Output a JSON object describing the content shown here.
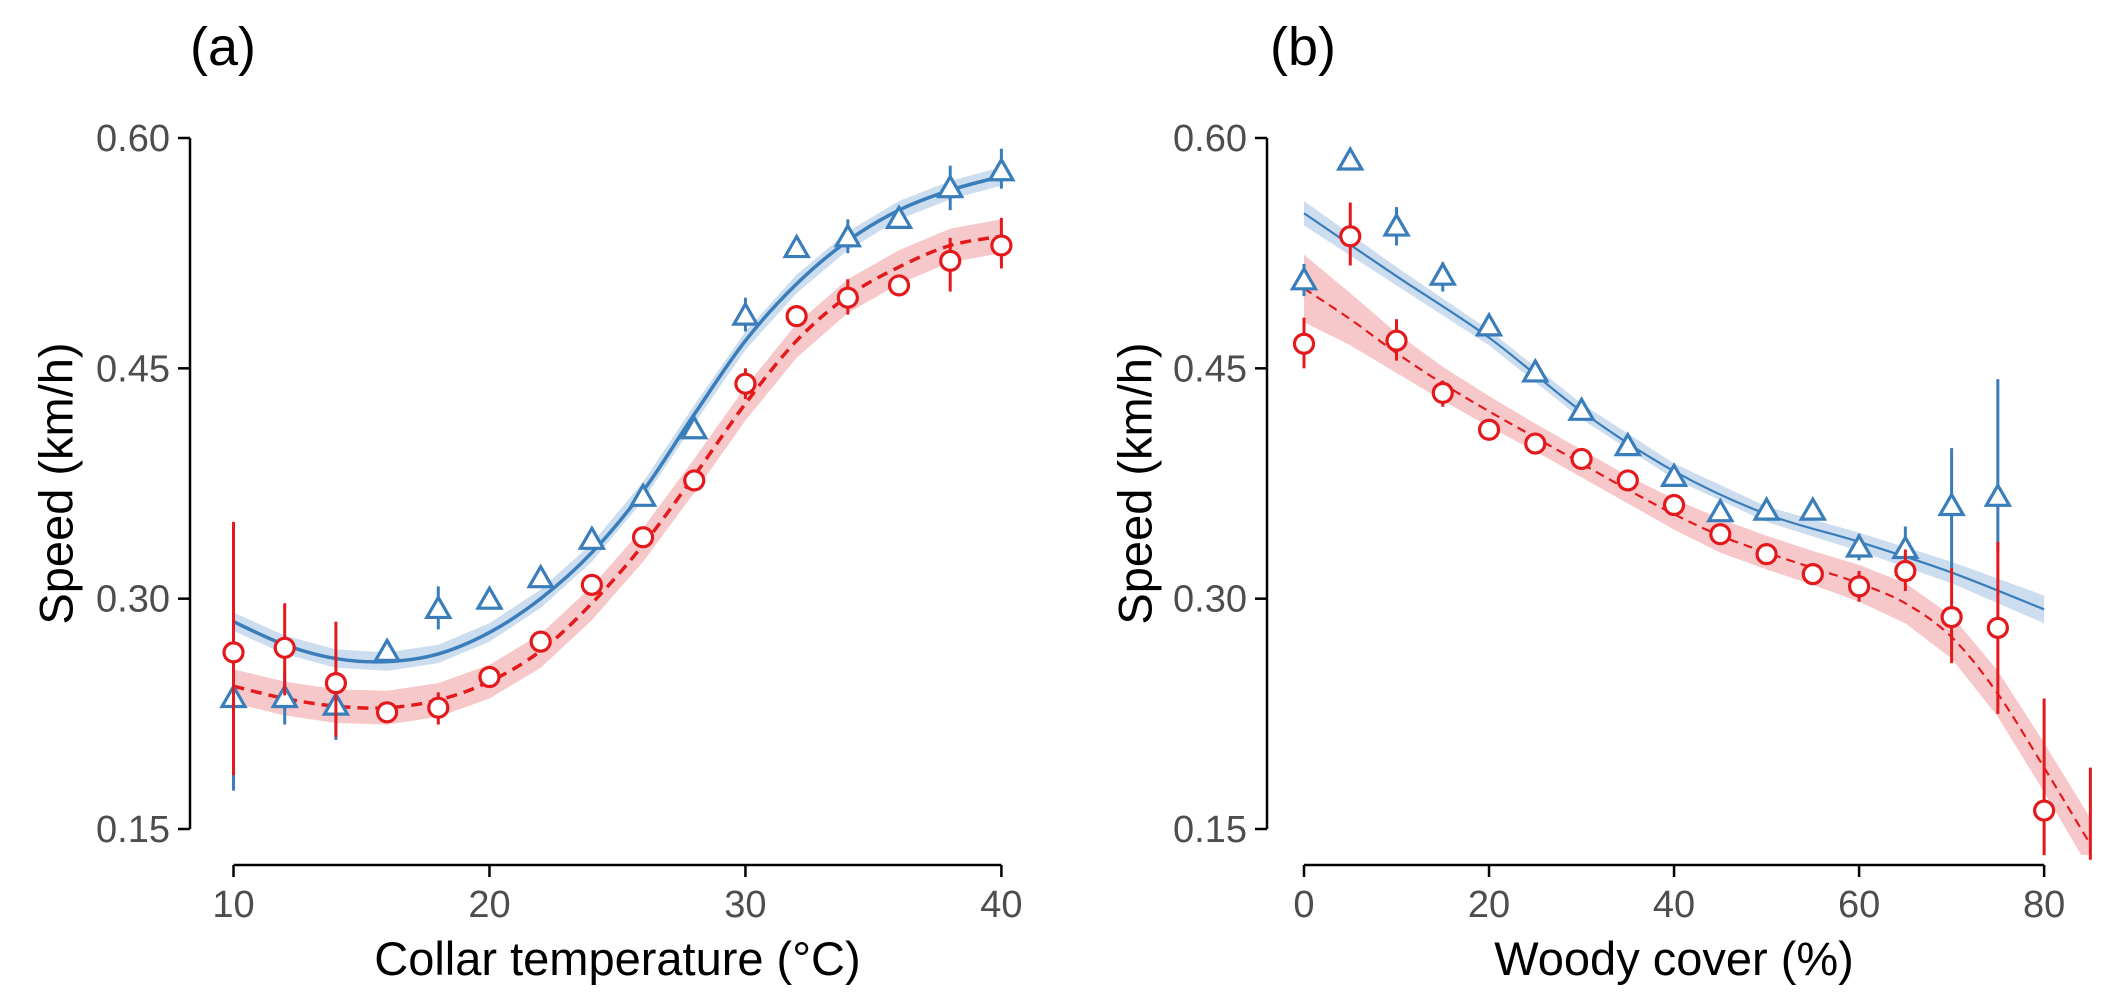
{
  "colors": {
    "blue": "#3a7dbb",
    "red": "#e3191c",
    "blue_band": "#b9d1e8",
    "red_band": "#f4b6b7"
  },
  "chart_data": [
    {
      "type": "scatter",
      "panel_label": "(a)",
      "xlabel": "Collar temperature (°C)",
      "ylabel": "Speed (km/h)",
      "xlim": [
        8.3,
        41
      ],
      "ylim": [
        0.127,
        0.63
      ],
      "xticks": [
        10,
        20,
        30,
        40
      ],
      "xtick_labels": [
        "10",
        "20",
        "30",
        "40"
      ],
      "yticks": [
        0.15,
        0.3,
        0.45,
        0.6
      ],
      "ytick_labels": [
        "0.15",
        "0.30",
        "0.45",
        "0.60"
      ],
      "grid": false,
      "series": [
        {
          "marker": "triangle",
          "color": "#3a7dbb",
          "line": "solid",
          "points": [
            {
              "x": 10,
              "y": 0.235,
              "lo": 0.175,
              "hi": 0.29
            },
            {
              "x": 12,
              "y": 0.235,
              "lo": 0.218,
              "hi": 0.253
            },
            {
              "x": 14,
              "y": 0.23,
              "lo": 0.208,
              "hi": 0.252
            },
            {
              "x": 16,
              "y": 0.265,
              "lo": 0.258,
              "hi": 0.272
            },
            {
              "x": 18,
              "y": 0.293,
              "lo": 0.28,
              "hi": 0.308
            },
            {
              "x": 20,
              "y": 0.299,
              "lo": 0.296,
              "hi": 0.302
            },
            {
              "x": 22,
              "y": 0.313,
              "lo": 0.308,
              "hi": 0.318
            },
            {
              "x": 24,
              "y": 0.338,
              "lo": 0.334,
              "hi": 0.342
            },
            {
              "x": 26,
              "y": 0.366,
              "lo": 0.36,
              "hi": 0.372
            },
            {
              "x": 28,
              "y": 0.41,
              "lo": 0.406,
              "hi": 0.414
            },
            {
              "x": 30,
              "y": 0.484,
              "lo": 0.474,
              "hi": 0.496
            },
            {
              "x": 32,
              "y": 0.528,
              "lo": 0.523,
              "hi": 0.533
            },
            {
              "x": 34,
              "y": 0.535,
              "lo": 0.525,
              "hi": 0.547
            },
            {
              "x": 36,
              "y": 0.547,
              "lo": 0.542,
              "hi": 0.552
            },
            {
              "x": 38,
              "y": 0.567,
              "lo": 0.553,
              "hi": 0.582
            },
            {
              "x": 40,
              "y": 0.578,
              "lo": 0.567,
              "hi": 0.593
            }
          ],
          "fit": {
            "x": [
              10,
              12,
              14,
              16,
              18,
              20,
              22,
              24,
              26,
              28,
              30,
              32,
              34,
              36,
              38,
              40
            ],
            "y": [
              0.285,
              0.27,
              0.261,
              0.259,
              0.264,
              0.278,
              0.3,
              0.33,
              0.37,
              0.42,
              0.468,
              0.505,
              0.533,
              0.553,
              0.566,
              0.575
            ],
            "band": 0.006
          }
        },
        {
          "marker": "circle",
          "color": "#e3191c",
          "line": "dashed",
          "points": [
            {
              "x": 10,
              "y": 0.265,
              "lo": 0.185,
              "hi": 0.35
            },
            {
              "x": 12,
              "y": 0.268,
              "lo": 0.237,
              "hi": 0.297
            },
            {
              "x": 14,
              "y": 0.245,
              "lo": 0.21,
              "hi": 0.285
            },
            {
              "x": 16,
              "y": 0.226,
              "lo": 0.222,
              "hi": 0.23
            },
            {
              "x": 18,
              "y": 0.229,
              "lo": 0.218,
              "hi": 0.239
            },
            {
              "x": 20,
              "y": 0.249,
              "lo": 0.245,
              "hi": 0.253
            },
            {
              "x": 22,
              "y": 0.272,
              "lo": 0.265,
              "hi": 0.279
            },
            {
              "x": 24,
              "y": 0.309,
              "lo": 0.305,
              "hi": 0.313
            },
            {
              "x": 26,
              "y": 0.34,
              "lo": 0.336,
              "hi": 0.344
            },
            {
              "x": 28,
              "y": 0.377,
              "lo": 0.373,
              "hi": 0.381
            },
            {
              "x": 30,
              "y": 0.44,
              "lo": 0.43,
              "hi": 0.45
            },
            {
              "x": 32,
              "y": 0.484,
              "lo": 0.48,
              "hi": 0.488
            },
            {
              "x": 34,
              "y": 0.496,
              "lo": 0.485,
              "hi": 0.508
            },
            {
              "x": 36,
              "y": 0.504,
              "lo": 0.5,
              "hi": 0.508
            },
            {
              "x": 38,
              "y": 0.52,
              "lo": 0.5,
              "hi": 0.535
            },
            {
              "x": 40,
              "y": 0.53,
              "lo": 0.515,
              "hi": 0.548
            }
          ],
          "fit": {
            "x": [
              10,
              12,
              14,
              16,
              18,
              20,
              22,
              24,
              26,
              28,
              30,
              32,
              34,
              36,
              38,
              40
            ],
            "y": [
              0.243,
              0.235,
              0.23,
              0.229,
              0.234,
              0.246,
              0.266,
              0.297,
              0.335,
              0.38,
              0.427,
              0.468,
              0.497,
              0.516,
              0.53,
              0.536
            ],
            "band": 0.011
          }
        }
      ]
    },
    {
      "type": "scatter",
      "panel_label": "(b)",
      "xlabel": "Woody cover (%)",
      "ylabel": "Speed (km/h)",
      "xlim": [
        -4,
        85.5
      ],
      "ylim": [
        0.127,
        0.63
      ],
      "xticks": [
        0,
        20,
        40,
        60,
        80
      ],
      "xtick_labels": [
        "0",
        "20",
        "40",
        "60",
        "80"
      ],
      "yticks": [
        0.15,
        0.3,
        0.45,
        0.6
      ],
      "ytick_labels": [
        "0.15",
        "0.30",
        "0.45",
        "0.60"
      ],
      "grid": false,
      "series": [
        {
          "marker": "triangle",
          "color": "#3a7dbb",
          "line": "solid",
          "points": [
            {
              "x": 0,
              "y": 0.507,
              "lo": 0.497,
              "hi": 0.518
            },
            {
              "x": 5,
              "y": 0.585,
              "lo": 0.582,
              "hi": 0.588
            },
            {
              "x": 10,
              "y": 0.542,
              "lo": 0.53,
              "hi": 0.555
            },
            {
              "x": 15,
              "y": 0.51,
              "lo": 0.5,
              "hi": 0.519
            },
            {
              "x": 20,
              "y": 0.477,
              "lo": 0.472,
              "hi": 0.482
            },
            {
              "x": 25,
              "y": 0.447,
              "lo": 0.442,
              "hi": 0.452
            },
            {
              "x": 30,
              "y": 0.422,
              "lo": 0.418,
              "hi": 0.426
            },
            {
              "x": 35,
              "y": 0.399,
              "lo": 0.395,
              "hi": 0.403
            },
            {
              "x": 40,
              "y": 0.379,
              "lo": 0.375,
              "hi": 0.383
            },
            {
              "x": 45,
              "y": 0.356,
              "lo": 0.352,
              "hi": 0.36
            },
            {
              "x": 50,
              "y": 0.357,
              "lo": 0.353,
              "hi": 0.361
            },
            {
              "x": 55,
              "y": 0.357,
              "lo": 0.353,
              "hi": 0.361
            },
            {
              "x": 60,
              "y": 0.333,
              "lo": 0.325,
              "hi": 0.342
            },
            {
              "x": 65,
              "y": 0.332,
              "lo": 0.318,
              "hi": 0.347
            },
            {
              "x": 70,
              "y": 0.36,
              "lo": 0.32,
              "hi": 0.398
            },
            {
              "x": 75,
              "y": 0.366,
              "lo": 0.33,
              "hi": 0.443
            }
          ],
          "fit": {
            "x": [
              0,
              10,
              20,
              30,
              40,
              50,
              60,
              70,
              80
            ],
            "y": [
              0.551,
              0.51,
              0.47,
              0.422,
              0.383,
              0.355,
              0.337,
              0.317,
              0.293
            ],
            "band_x": [
              0,
              10,
              20,
              30,
              40,
              50,
              60,
              70,
              80
            ],
            "band": [
              0.008,
              0.006,
              0.005,
              0.005,
              0.005,
              0.005,
              0.006,
              0.007,
              0.009
            ]
          }
        },
        {
          "marker": "circle",
          "color": "#e3191c",
          "line": "dashed",
          "points": [
            {
              "x": 0,
              "y": 0.466,
              "lo": 0.45,
              "hi": 0.483
            },
            {
              "x": 5,
              "y": 0.536,
              "lo": 0.517,
              "hi": 0.558
            },
            {
              "x": 10,
              "y": 0.468,
              "lo": 0.455,
              "hi": 0.482
            },
            {
              "x": 15,
              "y": 0.434,
              "lo": 0.425,
              "hi": 0.442
            },
            {
              "x": 20,
              "y": 0.41,
              "lo": 0.406,
              "hi": 0.414
            },
            {
              "x": 25,
              "y": 0.401,
              "lo": 0.397,
              "hi": 0.405
            },
            {
              "x": 30,
              "y": 0.391,
              "lo": 0.387,
              "hi": 0.395
            },
            {
              "x": 35,
              "y": 0.377,
              "lo": 0.373,
              "hi": 0.381
            },
            {
              "x": 40,
              "y": 0.361,
              "lo": 0.357,
              "hi": 0.365
            },
            {
              "x": 45,
              "y": 0.342,
              "lo": 0.338,
              "hi": 0.346
            },
            {
              "x": 50,
              "y": 0.329,
              "lo": 0.325,
              "hi": 0.333
            },
            {
              "x": 55,
              "y": 0.316,
              "lo": 0.309,
              "hi": 0.323
            },
            {
              "x": 60,
              "y": 0.308,
              "lo": 0.298,
              "hi": 0.318
            },
            {
              "x": 65,
              "y": 0.318,
              "lo": 0.305,
              "hi": 0.332
            },
            {
              "x": 70,
              "y": 0.288,
              "lo": 0.258,
              "hi": 0.32
            },
            {
              "x": 75,
              "y": 0.281,
              "lo": 0.225,
              "hi": 0.337
            },
            {
              "x": 80,
              "y": 0.162,
              "lo": 0.133,
              "hi": 0.235
            },
            {
              "x": 85,
              "y": null,
              "lo": 0.13,
              "hi": 0.19
            }
          ],
          "fit": {
            "x": [
              0,
              5,
              10,
              15,
              20,
              25,
              30,
              35,
              40,
              45,
              50,
              55,
              60,
              65,
              70,
              75,
              80,
              85
            ],
            "y": [
              0.502,
              0.482,
              0.46,
              0.44,
              0.422,
              0.405,
              0.388,
              0.371,
              0.355,
              0.341,
              0.33,
              0.32,
              0.31,
              0.297,
              0.275,
              0.238,
              0.19,
              0.14
            ],
            "band": [
              0.022,
              0.017,
              0.013,
              0.011,
              0.01,
              0.009,
              0.009,
              0.009,
              0.01,
              0.011,
              0.011,
              0.011,
              0.012,
              0.013,
              0.014,
              0.015,
              0.016,
              0.017
            ]
          }
        }
      ]
    }
  ]
}
